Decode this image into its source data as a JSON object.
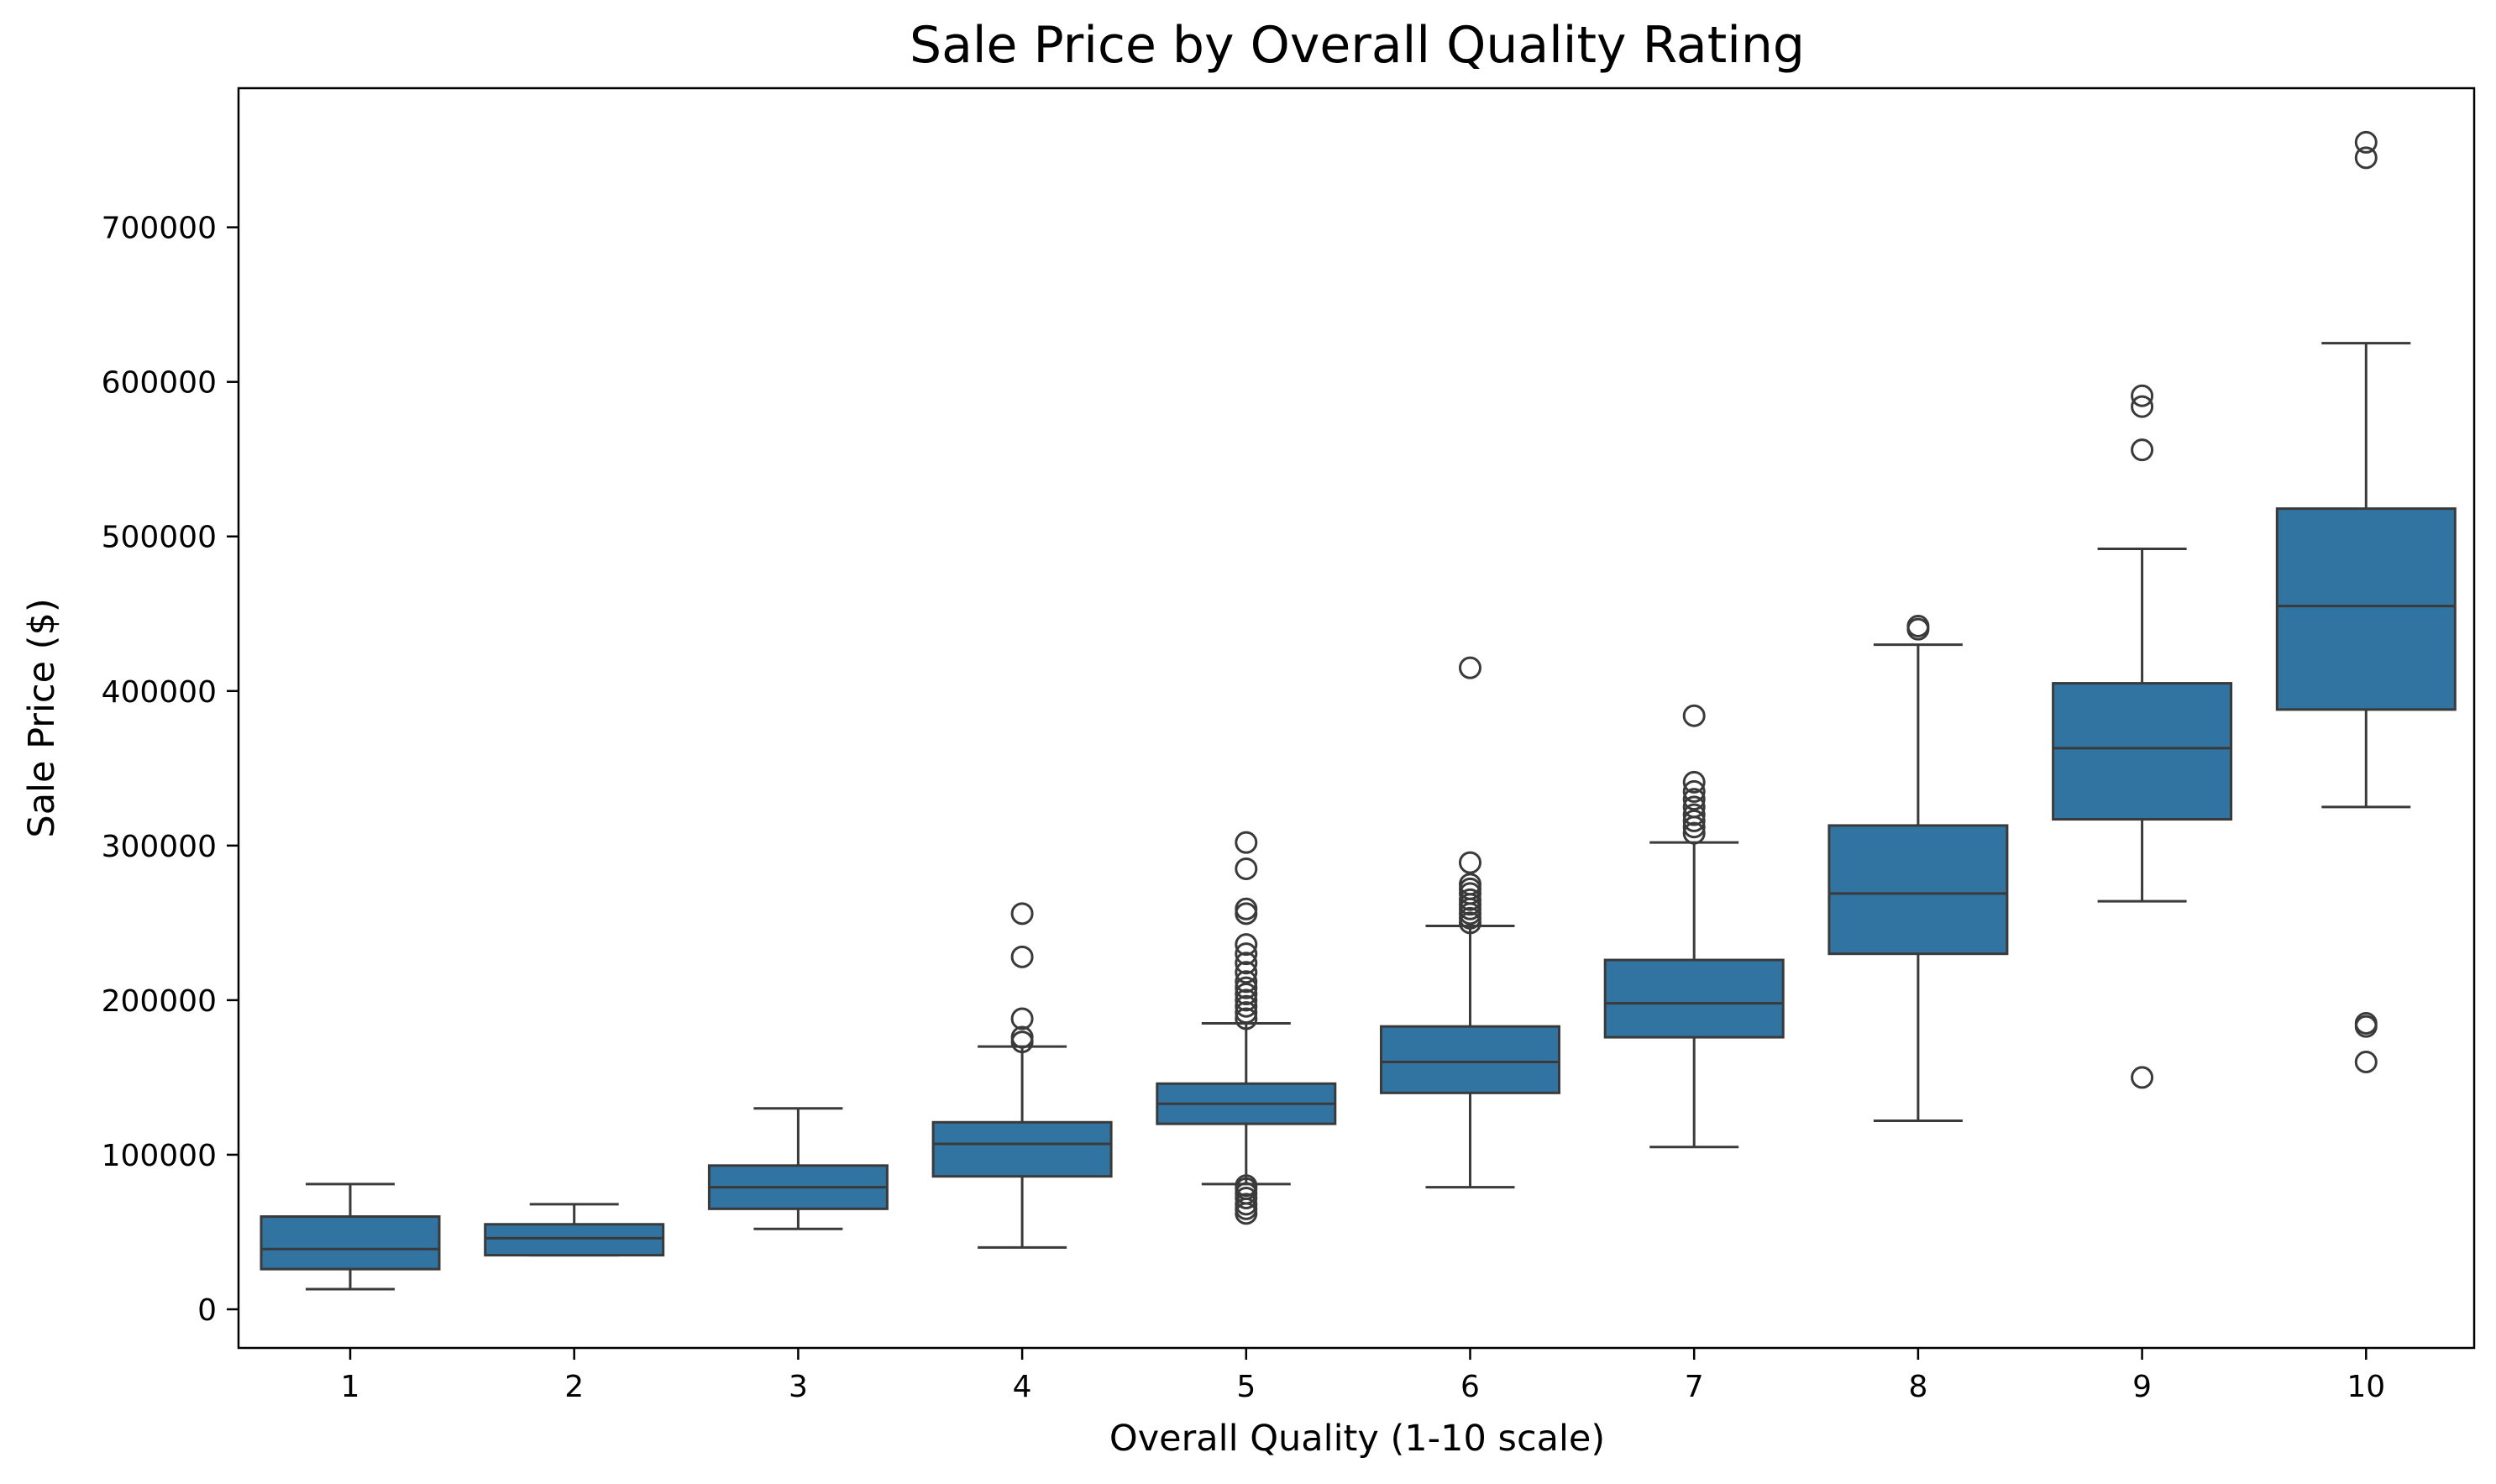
{
  "chart_data": {
    "type": "box",
    "title": "Sale Price by Overall Quality Rating",
    "xlabel": "Overall Quality (1-10 scale)",
    "ylabel": "Sale Price ($)",
    "categories": [
      "1",
      "2",
      "3",
      "4",
      "5",
      "6",
      "7",
      "8",
      "9",
      "10"
    ],
    "ylim": [
      -25000,
      790000
    ],
    "yticks": [
      0,
      100000,
      200000,
      300000,
      400000,
      500000,
      600000,
      700000
    ],
    "ytick_labels": [
      "0",
      "100000",
      "200000",
      "300000",
      "400000",
      "500000",
      "600000",
      "700000"
    ],
    "box_color": "#3274a1",
    "line_color": "#3a3a3a",
    "grid": false,
    "boxes": [
      {
        "category": "1",
        "whisker_low": 13000,
        "q1": 26000,
        "median": 39000,
        "q3": 60000,
        "whisker_high": 81000,
        "outliers": []
      },
      {
        "category": "2",
        "whisker_low": 35000,
        "q1": 35000,
        "median": 46000,
        "q3": 55000,
        "whisker_high": 68000,
        "outliers": []
      },
      {
        "category": "3",
        "whisker_low": 52000,
        "q1": 65000,
        "median": 79000,
        "q3": 93000,
        "whisker_high": 130000,
        "outliers": []
      },
      {
        "category": "4",
        "whisker_low": 40000,
        "q1": 86000,
        "median": 107000,
        "q3": 121000,
        "whisker_high": 170000,
        "outliers": [
          173000,
          176000,
          188000,
          228000,
          256000
        ]
      },
      {
        "category": "5",
        "whisker_low": 81000,
        "q1": 120000,
        "median": 133000,
        "q3": 146000,
        "whisker_high": 185000,
        "outliers": [
          62000,
          65000,
          68000,
          72000,
          75000,
          78000,
          80000,
          188000,
          192000,
          196000,
          200000,
          204000,
          208000,
          212000,
          218000,
          224000,
          230000,
          236000,
          256000,
          259000,
          285000,
          302000
        ]
      },
      {
        "category": "6",
        "whisker_low": 79000,
        "q1": 140000,
        "median": 160000,
        "q3": 183000,
        "whisker_high": 248000,
        "outliers": [
          250000,
          253000,
          256000,
          259000,
          262000,
          265000,
          269000,
          272000,
          275000,
          289000,
          415000
        ]
      },
      {
        "category": "7",
        "whisker_low": 105000,
        "q1": 176000,
        "median": 198000,
        "q3": 226000,
        "whisker_high": 302000,
        "outliers": [
          308000,
          312000,
          316000,
          320000,
          325000,
          330000,
          335000,
          341000,
          384000
        ]
      },
      {
        "category": "8",
        "whisker_low": 122000,
        "q1": 230000,
        "median": 269000,
        "q3": 313000,
        "whisker_high": 430000,
        "outliers": [
          440000,
          442000
        ]
      },
      {
        "category": "9",
        "whisker_low": 264000,
        "q1": 317000,
        "median": 363000,
        "q3": 405000,
        "whisker_high": 492000,
        "outliers": [
          150000,
          556000,
          584000,
          591000
        ]
      },
      {
        "category": "10",
        "whisker_low": 325000,
        "q1": 388000,
        "median": 455000,
        "q3": 518000,
        "whisker_high": 625000,
        "outliers": [
          160000,
          183000,
          185000,
          745000,
          755000
        ]
      }
    ]
  }
}
